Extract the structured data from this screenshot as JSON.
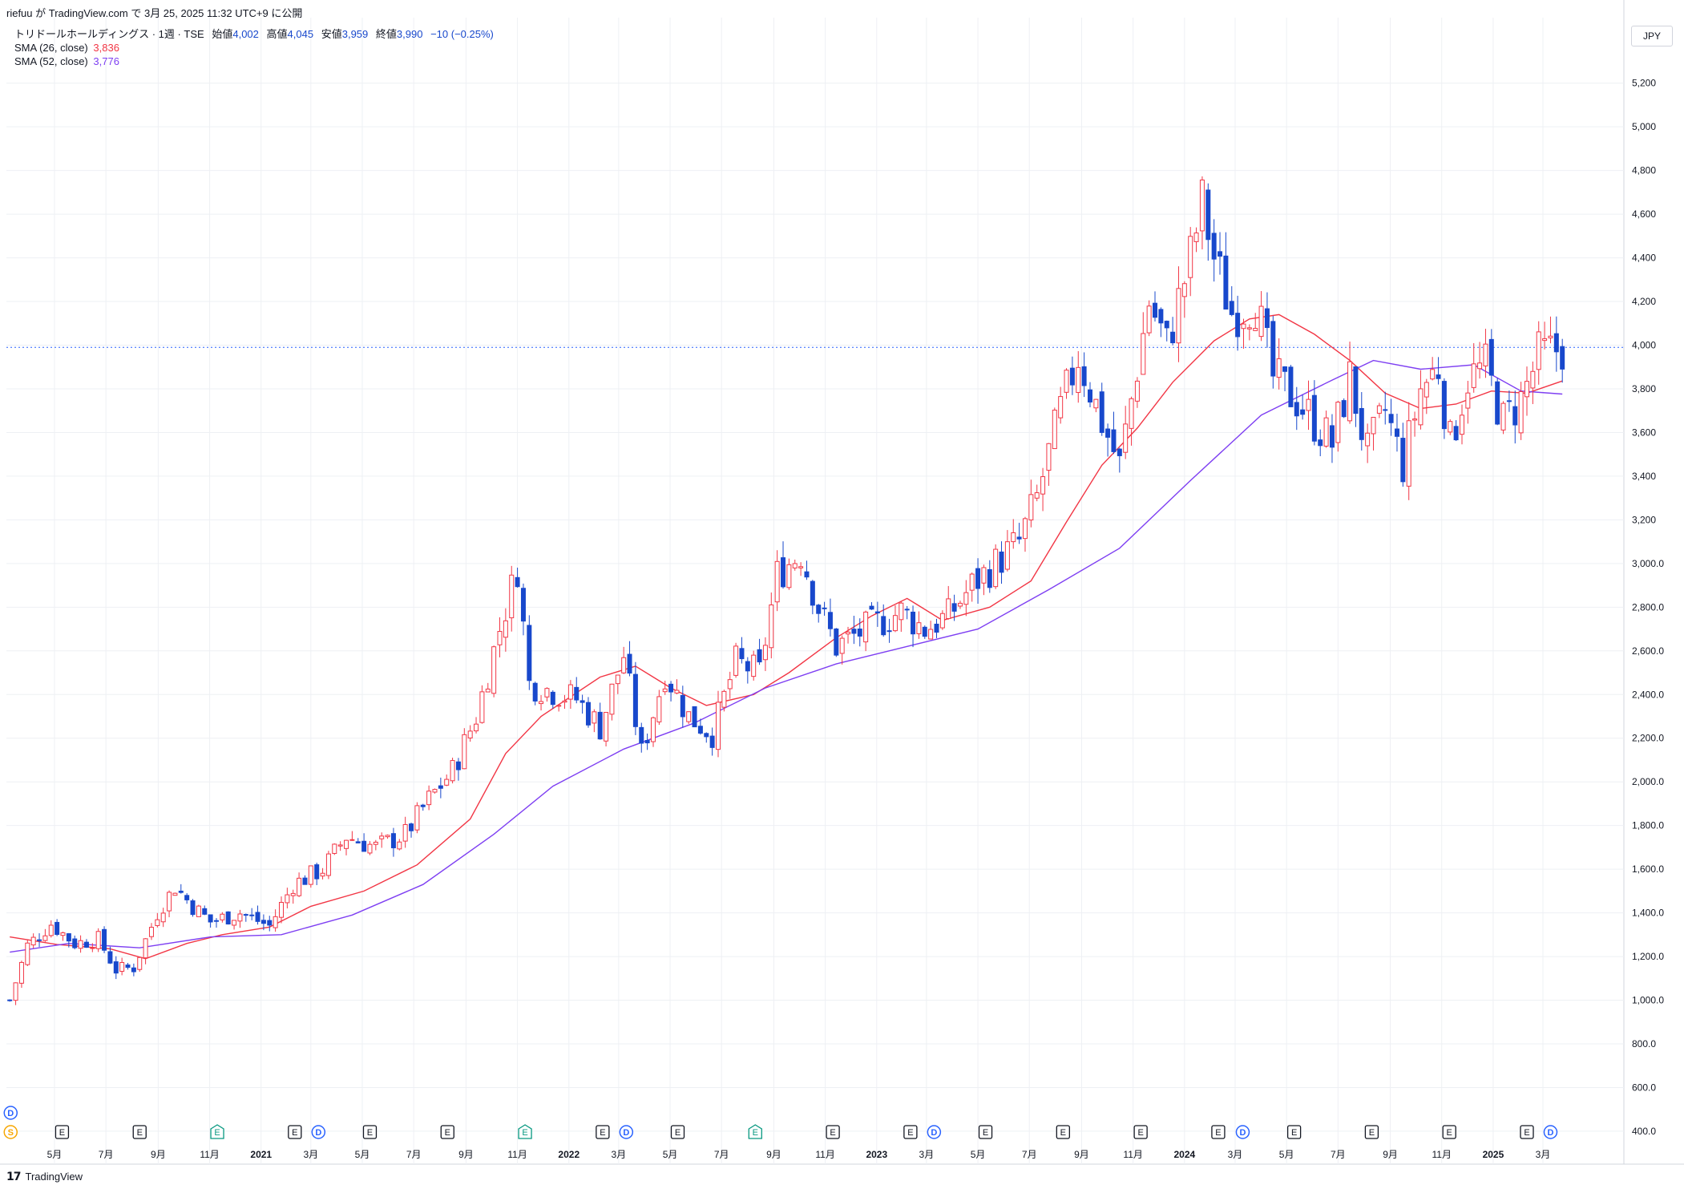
{
  "header": {
    "publisher": "riefuu が TradingView.com で 3月 25, 2025 11:32 UTC+9 に公開"
  },
  "legend": {
    "symbol": "トリドールホールディングス · 1週 · TSE",
    "open_label": "始値",
    "open": "4,002",
    "high_label": "高値",
    "high": "4,045",
    "low_label": "安値",
    "low": "3,959",
    "close_label": "終値",
    "close": "3,990",
    "change": "−10 (−0.25%)",
    "sma1_label": "SMA (26, close)",
    "sma1_value": "3,836",
    "sma2_label": "SMA (52, close)",
    "sma2_value": "3,776"
  },
  "currency": "JPY",
  "brand": "TradingView",
  "colors": {
    "up": "#f23645",
    "down": "#1848cc",
    "sma26": "#f23645",
    "sma52": "#7e3ff2",
    "grid": "#eef0f4",
    "price_line": "#2962ff"
  },
  "events": [
    {
      "x": "2020-03",
      "label": "D",
      "kind": "dividend",
      "row": 0
    },
    {
      "x": "2020-03",
      "label": "S",
      "kind": "split",
      "row": 1
    },
    {
      "x": "2020-05",
      "label": "E",
      "kind": "earnings"
    },
    {
      "x": "2020-08",
      "label": "E",
      "kind": "earnings"
    },
    {
      "x": "2020-11",
      "label": "E",
      "kind": "earnings-green"
    },
    {
      "x": "2021-02",
      "label": "E",
      "kind": "earnings"
    },
    {
      "x": "2021-03",
      "label": "D",
      "kind": "dividend"
    },
    {
      "x": "2021-05",
      "label": "E",
      "kind": "earnings"
    },
    {
      "x": "2021-08",
      "label": "E",
      "kind": "earnings"
    },
    {
      "x": "2021-11",
      "label": "E",
      "kind": "earnings-green"
    },
    {
      "x": "2022-02",
      "label": "E",
      "kind": "earnings"
    },
    {
      "x": "2022-03",
      "label": "D",
      "kind": "dividend"
    },
    {
      "x": "2022-05",
      "label": "E",
      "kind": "earnings"
    },
    {
      "x": "2022-08",
      "label": "E",
      "kind": "earnings-green"
    },
    {
      "x": "2022-11",
      "label": "E",
      "kind": "earnings"
    },
    {
      "x": "2023-02",
      "label": "E",
      "kind": "earnings"
    },
    {
      "x": "2023-03",
      "label": "D",
      "kind": "dividend"
    },
    {
      "x": "2023-05",
      "label": "E",
      "kind": "earnings"
    },
    {
      "x": "2023-08",
      "label": "E",
      "kind": "earnings"
    },
    {
      "x": "2023-11",
      "label": "E",
      "kind": "earnings"
    },
    {
      "x": "2024-02",
      "label": "E",
      "kind": "earnings"
    },
    {
      "x": "2024-03",
      "label": "D",
      "kind": "dividend"
    },
    {
      "x": "2024-05",
      "label": "E",
      "kind": "earnings"
    },
    {
      "x": "2024-08",
      "label": "E",
      "kind": "earnings"
    },
    {
      "x": "2024-11",
      "label": "E",
      "kind": "earnings"
    },
    {
      "x": "2025-02",
      "label": "E",
      "kind": "earnings"
    },
    {
      "x": "2025-03",
      "label": "D",
      "kind": "dividend"
    }
  ],
  "chart_data": {
    "type": "candlestick",
    "title": "トリドールホールディングス · 1週 · TSE",
    "interval": "1W",
    "x_ticks": [
      {
        "x": "2020-05",
        "label": "5月"
      },
      {
        "x": "2020-07",
        "label": "7月"
      },
      {
        "x": "2020-09",
        "label": "9月"
      },
      {
        "x": "2020-11",
        "label": "11月"
      },
      {
        "x": "2021-01",
        "label": "2021"
      },
      {
        "x": "2021-03",
        "label": "3月"
      },
      {
        "x": "2021-05",
        "label": "5月"
      },
      {
        "x": "2021-07",
        "label": "7月"
      },
      {
        "x": "2021-09",
        "label": "9月"
      },
      {
        "x": "2021-11",
        "label": "11月"
      },
      {
        "x": "2022-01",
        "label": "2022"
      },
      {
        "x": "2022-03",
        "label": "3月"
      },
      {
        "x": "2022-05",
        "label": "5月"
      },
      {
        "x": "2022-07",
        "label": "7月"
      },
      {
        "x": "2022-09",
        "label": "9月"
      },
      {
        "x": "2022-11",
        "label": "11月"
      },
      {
        "x": "2023-01",
        "label": "2023"
      },
      {
        "x": "2023-03",
        "label": "3月"
      },
      {
        "x": "2023-05",
        "label": "5月"
      },
      {
        "x": "2023-07",
        "label": "7月"
      },
      {
        "x": "2023-09",
        "label": "9月"
      },
      {
        "x": "2023-11",
        "label": "11月"
      },
      {
        "x": "2024-01",
        "label": "2024"
      },
      {
        "x": "2024-03",
        "label": "3月"
      },
      {
        "x": "2024-05",
        "label": "5月"
      },
      {
        "x": "2024-07",
        "label": "7月"
      },
      {
        "x": "2024-09",
        "label": "9月"
      },
      {
        "x": "2024-11",
        "label": "11月"
      },
      {
        "x": "2025-01",
        "label": "2025"
      },
      {
        "x": "2025-03",
        "label": "3月"
      }
    ],
    "y_ticks": [
      {
        "v": 400,
        "label": "400.0"
      },
      {
        "v": 600,
        "label": "600.0"
      },
      {
        "v": 800,
        "label": "800.0"
      },
      {
        "v": 1000,
        "label": "1,000.0"
      },
      {
        "v": 1200,
        "label": "1,200.0"
      },
      {
        "v": 1400,
        "label": "1,400.0"
      },
      {
        "v": 1600,
        "label": "1,600.0"
      },
      {
        "v": 1800,
        "label": "1,800.0"
      },
      {
        "v": 2000,
        "label": "2,000.0"
      },
      {
        "v": 2200,
        "label": "2,200.0"
      },
      {
        "v": 2400,
        "label": "2,400.0"
      },
      {
        "v": 2600,
        "label": "2,600.0"
      },
      {
        "v": 2800,
        "label": "2,800.0"
      },
      {
        "v": 3000,
        "label": "3,000.0"
      },
      {
        "v": 3200,
        "label": "3,200"
      },
      {
        "v": 3400,
        "label": "3,400"
      },
      {
        "v": 3600,
        "label": "3,600"
      },
      {
        "v": 3800,
        "label": "3,800"
      },
      {
        "v": 4000,
        "label": "4,000"
      },
      {
        "v": 4200,
        "label": "4,200"
      },
      {
        "v": 4400,
        "label": "4,400"
      },
      {
        "v": 4600,
        "label": "4,600"
      },
      {
        "v": 4800,
        "label": "4,800"
      },
      {
        "v": 5000,
        "label": "5,000"
      },
      {
        "v": 5200,
        "label": "5,200"
      }
    ],
    "ylim": [
      330,
      5500
    ],
    "xlim": [
      "2020-03-05",
      "2025-06-05"
    ],
    "last_price": 3990,
    "grid": true,
    "close_path": [
      {
        "x": "2020-03-09",
        "y": 1000
      },
      {
        "x": "2020-03-30",
        "y": 1250
      },
      {
        "x": "2020-04-27",
        "y": 1350
      },
      {
        "x": "2020-05-25",
        "y": 1260
      },
      {
        "x": "2020-06-22",
        "y": 1280
      },
      {
        "x": "2020-07-13",
        "y": 1140
      },
      {
        "x": "2020-08-03",
        "y": 1150
      },
      {
        "x": "2020-08-31",
        "y": 1400
      },
      {
        "x": "2020-09-21",
        "y": 1520
      },
      {
        "x": "2020-10-12",
        "y": 1430
      },
      {
        "x": "2020-11-02",
        "y": 1360
      },
      {
        "x": "2020-12-07",
        "y": 1400
      },
      {
        "x": "2021-01-11",
        "y": 1340
      },
      {
        "x": "2021-02-08",
        "y": 1530
      },
      {
        "x": "2021-03-15",
        "y": 1600
      },
      {
        "x": "2021-04-12",
        "y": 1750
      },
      {
        "x": "2021-05-17",
        "y": 1700
      },
      {
        "x": "2021-06-21",
        "y": 1760
      },
      {
        "x": "2021-07-19",
        "y": 1920
      },
      {
        "x": "2021-08-16",
        "y": 2050
      },
      {
        "x": "2021-09-13",
        "y": 2300
      },
      {
        "x": "2021-10-11",
        "y": 2700
      },
      {
        "x": "2021-11-01",
        "y": 2980
      },
      {
        "x": "2021-11-15",
        "y": 2450
      },
      {
        "x": "2022-01-10",
        "y": 2380
      },
      {
        "x": "2022-02-07",
        "y": 2250
      },
      {
        "x": "2022-03-07",
        "y": 2580
      },
      {
        "x": "2022-03-28",
        "y": 2130
      },
      {
        "x": "2022-04-25",
        "y": 2500
      },
      {
        "x": "2022-05-23",
        "y": 2300
      },
      {
        "x": "2022-06-20",
        "y": 2220
      },
      {
        "x": "2022-07-18",
        "y": 2550
      },
      {
        "x": "2022-08-15",
        "y": 2500
      },
      {
        "x": "2022-09-05",
        "y": 2950
      },
      {
        "x": "2022-10-03",
        "y": 3050
      },
      {
        "x": "2022-10-24",
        "y": 2800
      },
      {
        "x": "2022-11-14",
        "y": 2620
      },
      {
        "x": "2022-12-19",
        "y": 2700
      },
      {
        "x": "2023-01-30",
        "y": 2780
      },
      {
        "x": "2023-02-27",
        "y": 2700
      },
      {
        "x": "2023-03-27",
        "y": 2760
      },
      {
        "x": "2023-04-24",
        "y": 2900
      },
      {
        "x": "2023-05-22",
        "y": 3000
      },
      {
        "x": "2023-06-19",
        "y": 3100
      },
      {
        "x": "2023-07-10",
        "y": 3300
      },
      {
        "x": "2023-08-07",
        "y": 3700
      },
      {
        "x": "2023-08-28",
        "y": 3950
      },
      {
        "x": "2023-09-25",
        "y": 3650
      },
      {
        "x": "2023-10-16",
        "y": 3450
      },
      {
        "x": "2023-11-06",
        "y": 3900
      },
      {
        "x": "2023-11-20",
        "y": 4200
      },
      {
        "x": "2023-12-11",
        "y": 4000
      },
      {
        "x": "2024-01-08",
        "y": 4400
      },
      {
        "x": "2024-01-22",
        "y": 4650
      },
      {
        "x": "2024-02-05",
        "y": 4400
      },
      {
        "x": "2024-02-26",
        "y": 4150
      },
      {
        "x": "2024-03-25",
        "y": 4200
      },
      {
        "x": "2024-04-15",
        "y": 3850
      },
      {
        "x": "2024-05-13",
        "y": 3750
      },
      {
        "x": "2024-06-03",
        "y": 3650
      },
      {
        "x": "2024-06-24",
        "y": 3550
      },
      {
        "x": "2024-07-15",
        "y": 3850
      },
      {
        "x": "2024-08-05",
        "y": 3500
      },
      {
        "x": "2024-08-26",
        "y": 3700
      },
      {
        "x": "2024-09-16",
        "y": 3450
      },
      {
        "x": "2024-10-07",
        "y": 3800
      },
      {
        "x": "2024-10-28",
        "y": 3900
      },
      {
        "x": "2024-11-11",
        "y": 3550
      },
      {
        "x": "2024-12-02",
        "y": 3850
      },
      {
        "x": "2024-12-23",
        "y": 3900
      },
      {
        "x": "2025-01-13",
        "y": 3650
      },
      {
        "x": "2025-02-03",
        "y": 3750
      },
      {
        "x": "2025-02-24",
        "y": 3950
      },
      {
        "x": "2025-03-24",
        "y": 3990
      }
    ],
    "series": [
      {
        "name": "SMA (26, close)",
        "color": "#f23645",
        "points": [
          {
            "x": "2020-03-09",
            "y": 1290
          },
          {
            "x": "2020-05-04",
            "y": 1255
          },
          {
            "x": "2020-07-06",
            "y": 1235
          },
          {
            "x": "2020-08-17",
            "y": 1190
          },
          {
            "x": "2020-10-05",
            "y": 1260
          },
          {
            "x": "2020-11-16",
            "y": 1300
          },
          {
            "x": "2021-01-11",
            "y": 1335
          },
          {
            "x": "2021-03-01",
            "y": 1430
          },
          {
            "x": "2021-05-03",
            "y": 1500
          },
          {
            "x": "2021-07-05",
            "y": 1620
          },
          {
            "x": "2021-09-06",
            "y": 1830
          },
          {
            "x": "2021-10-18",
            "y": 2130
          },
          {
            "x": "2021-11-29",
            "y": 2300
          },
          {
            "x": "2022-02-07",
            "y": 2480
          },
          {
            "x": "2022-03-21",
            "y": 2530
          },
          {
            "x": "2022-05-02",
            "y": 2430
          },
          {
            "x": "2022-06-13",
            "y": 2350
          },
          {
            "x": "2022-08-08",
            "y": 2400
          },
          {
            "x": "2022-09-19",
            "y": 2500
          },
          {
            "x": "2022-11-14",
            "y": 2660
          },
          {
            "x": "2022-12-26",
            "y": 2760
          },
          {
            "x": "2023-02-06",
            "y": 2840
          },
          {
            "x": "2023-03-20",
            "y": 2740
          },
          {
            "x": "2023-05-15",
            "y": 2800
          },
          {
            "x": "2023-07-03",
            "y": 2920
          },
          {
            "x": "2023-08-14",
            "y": 3190
          },
          {
            "x": "2023-09-25",
            "y": 3450
          },
          {
            "x": "2023-11-06",
            "y": 3620
          },
          {
            "x": "2023-12-18",
            "y": 3830
          },
          {
            "x": "2024-02-05",
            "y": 4020
          },
          {
            "x": "2024-03-18",
            "y": 4120
          },
          {
            "x": "2024-04-22",
            "y": 4140
          },
          {
            "x": "2024-06-03",
            "y": 4050
          },
          {
            "x": "2024-07-15",
            "y": 3930
          },
          {
            "x": "2024-08-26",
            "y": 3780
          },
          {
            "x": "2024-10-07",
            "y": 3710
          },
          {
            "x": "2024-11-18",
            "y": 3730
          },
          {
            "x": "2024-12-30",
            "y": 3790
          },
          {
            "x": "2025-02-10",
            "y": 3780
          },
          {
            "x": "2025-03-24",
            "y": 3836
          }
        ]
      },
      {
        "name": "SMA (52, close)",
        "color": "#7e3ff2",
        "points": [
          {
            "x": "2020-03-09",
            "y": 1220
          },
          {
            "x": "2020-05-18",
            "y": 1260
          },
          {
            "x": "2020-08-10",
            "y": 1240
          },
          {
            "x": "2020-11-02",
            "y": 1290
          },
          {
            "x": "2021-01-25",
            "y": 1300
          },
          {
            "x": "2021-04-19",
            "y": 1390
          },
          {
            "x": "2021-07-12",
            "y": 1530
          },
          {
            "x": "2021-10-04",
            "y": 1760
          },
          {
            "x": "2021-12-13",
            "y": 1980
          },
          {
            "x": "2022-03-07",
            "y": 2150
          },
          {
            "x": "2022-05-30",
            "y": 2270
          },
          {
            "x": "2022-08-22",
            "y": 2430
          },
          {
            "x": "2022-11-14",
            "y": 2540
          },
          {
            "x": "2023-02-06",
            "y": 2620
          },
          {
            "x": "2023-05-01",
            "y": 2700
          },
          {
            "x": "2023-07-24",
            "y": 2880
          },
          {
            "x": "2023-10-16",
            "y": 3070
          },
          {
            "x": "2024-01-08",
            "y": 3380
          },
          {
            "x": "2024-04-01",
            "y": 3680
          },
          {
            "x": "2024-06-24",
            "y": 3840
          },
          {
            "x": "2024-08-12",
            "y": 3930
          },
          {
            "x": "2024-10-07",
            "y": 3890
          },
          {
            "x": "2024-12-09",
            "y": 3910
          },
          {
            "x": "2025-02-03",
            "y": 3790
          },
          {
            "x": "2025-03-24",
            "y": 3776
          }
        ]
      }
    ]
  }
}
